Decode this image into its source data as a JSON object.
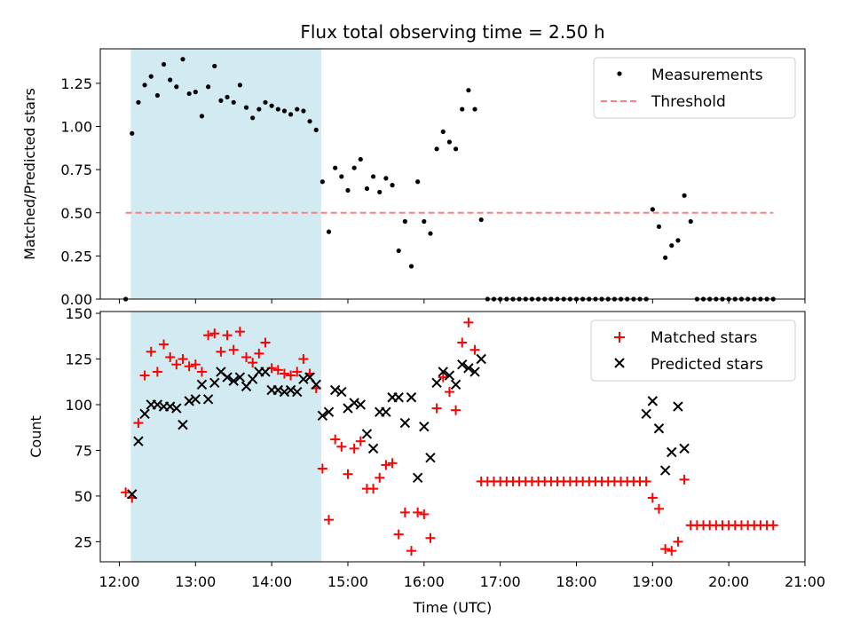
{
  "title": "Flux total observing time = 2.50 h",
  "colors": {
    "shade": "#add8e6",
    "matched": "#ff0000",
    "predicted": "#000000",
    "threshold": "#ff7f7f",
    "measurements": "#000000"
  },
  "chart_data": [
    {
      "type": "scatter",
      "ylabel": "Matched/Predicted stars",
      "xlim": [
        "11:45",
        "21:00"
      ],
      "ylim": [
        0,
        1.45
      ],
      "yticks": [
        "0.00",
        "0.25",
        "0.50",
        "0.75",
        "1.00",
        "1.25"
      ],
      "highlight_interval": [
        "12:09",
        "14:39"
      ],
      "threshold": {
        "value": 0.5,
        "x_range": [
          "12:05",
          "20:35"
        ]
      },
      "legend": {
        "position": "top-right",
        "entries": [
          "Measurements",
          "Threshold"
        ]
      },
      "series": [
        {
          "name": "Measurements",
          "x": [
            "12:05",
            "12:10",
            "12:15",
            "12:20",
            "12:25",
            "12:30",
            "12:35",
            "12:40",
            "12:45",
            "12:50",
            "12:55",
            "13:00",
            "13:05",
            "13:10",
            "13:15",
            "13:20",
            "13:25",
            "13:30",
            "13:35",
            "13:40",
            "13:45",
            "13:50",
            "13:55",
            "14:00",
            "14:05",
            "14:10",
            "14:15",
            "14:20",
            "14:25",
            "14:30",
            "14:35",
            "14:40",
            "14:45",
            "14:50",
            "14:55",
            "15:00",
            "15:05",
            "15:10",
            "15:15",
            "15:20",
            "15:25",
            "15:30",
            "15:35",
            "15:40",
            "15:45",
            "15:50",
            "15:55",
            "16:00",
            "16:05",
            "16:10",
            "16:15",
            "16:20",
            "16:25",
            "16:30",
            "16:35",
            "16:40",
            "16:45",
            "16:50",
            "16:55",
            "17:00",
            "17:05",
            "17:10",
            "17:15",
            "17:20",
            "17:25",
            "17:30",
            "17:35",
            "17:40",
            "17:45",
            "17:50",
            "17:55",
            "18:00",
            "18:05",
            "18:10",
            "18:15",
            "18:20",
            "18:25",
            "18:30",
            "18:35",
            "18:40",
            "18:45",
            "18:50",
            "18:55",
            "19:00",
            "19:05",
            "19:10",
            "19:15",
            "19:20",
            "19:25",
            "19:30",
            "19:35",
            "19:40",
            "19:45",
            "19:50",
            "19:55",
            "20:00",
            "20:05",
            "20:10",
            "20:15",
            "20:20",
            "20:25",
            "20:30",
            "20:35"
          ],
          "y": [
            0.0,
            0.96,
            1.14,
            1.24,
            1.29,
            1.18,
            1.36,
            1.27,
            1.23,
            1.39,
            1.19,
            1.2,
            1.06,
            1.23,
            1.35,
            1.15,
            1.17,
            1.14,
            1.24,
            1.11,
            1.05,
            1.1,
            1.14,
            1.12,
            1.1,
            1.09,
            1.07,
            1.1,
            1.09,
            1.03,
            0.98,
            0.68,
            0.39,
            0.76,
            0.71,
            0.63,
            0.76,
            0.81,
            0.64,
            0.71,
            0.62,
            0.7,
            0.66,
            0.28,
            0.45,
            0.19,
            0.68,
            0.45,
            0.38,
            0.87,
            0.97,
            0.91,
            0.87,
            1.1,
            1.21,
            1.1,
            0.46,
            0.0,
            0.0,
            0.0,
            0.0,
            0.0,
            0.0,
            0.0,
            0.0,
            0.0,
            0.0,
            0.0,
            0.0,
            0.0,
            0.0,
            0.0,
            0.0,
            0.0,
            0.0,
            0.0,
            0.0,
            0.0,
            0.0,
            0.0,
            0.0,
            0.0,
            0.0,
            0.52,
            0.42,
            0.24,
            0.31,
            0.34,
            0.6,
            0.45,
            0.0,
            0.0,
            0.0,
            0.0,
            0.0,
            0.0,
            0.0,
            0.0,
            0.0,
            0.0,
            0.0,
            0.0,
            0.0
          ]
        }
      ]
    },
    {
      "type": "scatter",
      "xlabel": "Time (UTC)",
      "ylabel": "Count",
      "xlim": [
        "11:45",
        "21:00"
      ],
      "ylim": [
        14,
        151
      ],
      "xticks": [
        "12:00",
        "13:00",
        "14:00",
        "15:00",
        "16:00",
        "17:00",
        "18:00",
        "19:00",
        "20:00",
        "21:00"
      ],
      "yticks": [
        "25",
        "50",
        "75",
        "100",
        "125",
        "150"
      ],
      "highlight_interval": [
        "12:09",
        "14:39"
      ],
      "legend": {
        "position": "top-right",
        "entries": [
          "Matched stars",
          "Predicted stars"
        ]
      },
      "series": [
        {
          "name": "Matched stars",
          "x": [
            "12:05",
            "12:10",
            "12:15",
            "12:20",
            "12:25",
            "12:30",
            "12:35",
            "12:40",
            "12:45",
            "12:50",
            "12:55",
            "13:00",
            "13:05",
            "13:10",
            "13:15",
            "13:20",
            "13:25",
            "13:30",
            "13:35",
            "13:40",
            "13:45",
            "13:50",
            "13:55",
            "14:00",
            "14:05",
            "14:10",
            "14:15",
            "14:20",
            "14:25",
            "14:30",
            "14:35",
            "14:40",
            "14:45",
            "14:50",
            "14:55",
            "15:00",
            "15:05",
            "15:10",
            "15:15",
            "15:20",
            "15:25",
            "15:30",
            "15:35",
            "15:40",
            "15:45",
            "15:50",
            "15:55",
            "16:00",
            "16:05",
            "16:10",
            "16:15",
            "16:20",
            "16:25",
            "16:30",
            "16:35",
            "16:40",
            "16:45",
            "16:50",
            "16:55",
            "17:00",
            "17:05",
            "17:10",
            "17:15",
            "17:20",
            "17:25",
            "17:30",
            "17:35",
            "17:40",
            "17:45",
            "17:50",
            "17:55",
            "18:00",
            "18:05",
            "18:10",
            "18:15",
            "18:20",
            "18:25",
            "18:30",
            "18:35",
            "18:40",
            "18:45",
            "18:50",
            "18:55",
            "19:00",
            "19:05",
            "19:10",
            "19:15",
            "19:20",
            "19:25",
            "19:30",
            "19:35",
            "19:40",
            "19:45",
            "19:50",
            "19:55",
            "20:00",
            "20:05",
            "20:10",
            "20:15",
            "20:20",
            "20:25",
            "20:30",
            "20:35"
          ],
          "y": [
            52,
            49,
            90,
            116,
            129,
            118,
            133,
            126,
            122,
            125,
            121,
            122,
            118,
            138,
            139,
            129,
            138,
            130,
            140,
            126,
            123,
            128,
            134,
            120,
            119,
            117,
            116,
            118,
            125,
            117,
            109,
            65,
            37,
            81,
            77,
            62,
            76,
            80,
            54,
            54,
            60,
            67,
            68,
            29,
            41,
            20,
            41,
            40,
            27,
            98,
            115,
            107,
            97,
            134,
            145,
            130,
            58,
            58,
            58,
            58,
            58,
            58,
            58,
            58,
            58,
            58,
            58,
            58,
            58,
            58,
            58,
            58,
            58,
            58,
            58,
            58,
            58,
            58,
            58,
            58,
            58,
            58,
            58,
            49,
            43,
            21,
            20,
            25,
            59,
            34,
            34,
            34,
            34,
            34,
            34,
            34,
            34,
            34,
            34,
            34,
            34,
            34,
            34
          ]
        },
        {
          "name": "Predicted stars",
          "x": [
            "12:10",
            "12:15",
            "12:20",
            "12:25",
            "12:30",
            "12:35",
            "12:40",
            "12:45",
            "12:50",
            "12:55",
            "13:00",
            "13:05",
            "13:10",
            "13:15",
            "13:20",
            "13:25",
            "13:30",
            "13:35",
            "13:40",
            "13:45",
            "13:50",
            "13:55",
            "14:00",
            "14:05",
            "14:10",
            "14:15",
            "14:20",
            "14:25",
            "14:30",
            "14:35",
            "14:40",
            "14:45",
            "14:50",
            "14:55",
            "15:00",
            "15:05",
            "15:10",
            "15:15",
            "15:20",
            "15:25",
            "15:30",
            "15:35",
            "15:40",
            "15:45",
            "15:50",
            "15:55",
            "16:00",
            "16:05",
            "16:10",
            "16:15",
            "16:20",
            "16:25",
            "16:30",
            "16:35",
            "16:40",
            "16:45",
            "18:55",
            "19:00",
            "19:05",
            "19:10",
            "19:15",
            "19:20",
            "19:25"
          ],
          "y": [
            51,
            80,
            95,
            100,
            100,
            99,
            99,
            98,
            89,
            102,
            103,
            111,
            103,
            112,
            118,
            115,
            113,
            115,
            110,
            114,
            118,
            118,
            108,
            108,
            107,
            108,
            107,
            114,
            115,
            111,
            94,
            96,
            108,
            107,
            98,
            101,
            100,
            84,
            76,
            96,
            96,
            104,
            104,
            90,
            104,
            60,
            88,
            71,
            112,
            118,
            116,
            111,
            122,
            120,
            118,
            125,
            95,
            102,
            87,
            64,
            74,
            99,
            76
          ]
        }
      ]
    }
  ]
}
